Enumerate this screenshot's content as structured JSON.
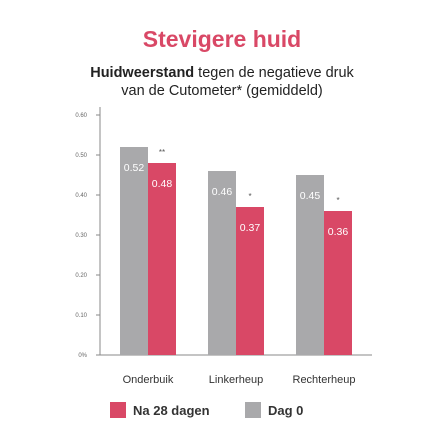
{
  "title": "Stevigere huid",
  "subtitle": {
    "bold": "Huidweerstand",
    "rest_line1": " tegen de negatieve druk",
    "line2": "van de Cutometer* (gemiddeld)"
  },
  "colors": {
    "pink": "#d94866",
    "gray": "#a9a9ab",
    "title": "#d94866"
  },
  "chart_data": {
    "type": "bar",
    "categories": [
      "Onderbuik",
      "Linkerheup",
      "Rechterheup"
    ],
    "series": [
      {
        "name": "Dag 0",
        "values": [
          0.52,
          0.46,
          0.45
        ],
        "labels": [
          "0.52",
          "0.46",
          "0.45"
        ],
        "color": "#a9a9ab"
      },
      {
        "name": "Na 28 dagen",
        "values": [
          0.48,
          0.37,
          0.36
        ],
        "labels": [
          "0.48",
          "0.37",
          "0.36"
        ],
        "color": "#d94866"
      }
    ],
    "significance": [
      "**",
      "*",
      "*"
    ],
    "yticks": [
      0,
      0.1,
      0.2,
      0.3,
      0.4,
      0.5,
      0.6
    ],
    "ytick_labels": [
      "0%",
      "0.10",
      "0.20",
      "0.30",
      "0.40",
      "0.50",
      "0.60"
    ],
    "ylim": [
      0,
      0.6
    ],
    "grid": false,
    "legend": "bottom"
  },
  "legend": [
    {
      "label": "Na 28 dagen",
      "color": "#d94866"
    },
    {
      "label": "Dag 0",
      "color": "#a9a9ab"
    }
  ]
}
